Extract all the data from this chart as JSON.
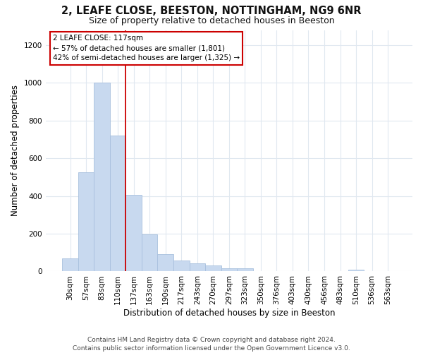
{
  "title": "2, LEAFE CLOSE, BEESTON, NOTTINGHAM, NG9 6NR",
  "subtitle": "Size of property relative to detached houses in Beeston",
  "xlabel": "Distribution of detached houses by size in Beeston",
  "ylabel": "Number of detached properties",
  "bar_labels": [
    "30sqm",
    "57sqm",
    "83sqm",
    "110sqm",
    "137sqm",
    "163sqm",
    "190sqm",
    "217sqm",
    "243sqm",
    "270sqm",
    "297sqm",
    "323sqm",
    "350sqm",
    "376sqm",
    "403sqm",
    "430sqm",
    "456sqm",
    "483sqm",
    "510sqm",
    "536sqm",
    "563sqm"
  ],
  "bar_values": [
    70,
    525,
    1000,
    720,
    405,
    195,
    90,
    58,
    42,
    30,
    18,
    18,
    0,
    0,
    0,
    0,
    0,
    0,
    8,
    0,
    0
  ],
  "bar_color": "#c8d9ef",
  "bar_edge_color": "#a8c0de",
  "highlight_line_color": "#cc0000",
  "annotation_title": "2 LEAFE CLOSE: 117sqm",
  "annotation_line1": "← 57% of detached houses are smaller (1,801)",
  "annotation_line2": "42% of semi-detached houses are larger (1,325) →",
  "annotation_box_color": "#ffffff",
  "annotation_box_edge_color": "#cc0000",
  "ylim": [
    0,
    1280
  ],
  "yticks": [
    0,
    200,
    400,
    600,
    800,
    1000,
    1200
  ],
  "footer_line1": "Contains HM Land Registry data © Crown copyright and database right 2024.",
  "footer_line2": "Contains public sector information licensed under the Open Government Licence v3.0.",
  "background_color": "#ffffff",
  "plot_background_color": "#ffffff",
  "grid_color": "#e0e8f0",
  "title_fontsize": 10.5,
  "subtitle_fontsize": 9,
  "axis_label_fontsize": 8.5,
  "tick_fontsize": 7.5,
  "footer_fontsize": 6.5
}
